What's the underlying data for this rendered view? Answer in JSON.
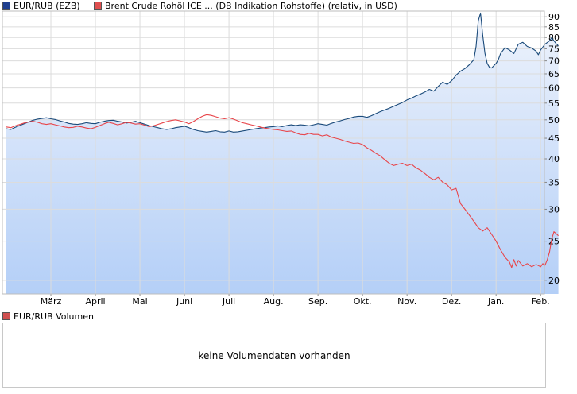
{
  "legend": {
    "series1_label": "EUR/RUB (EZB)",
    "series2_label": "Brent Crude Rohöl ICE ... (DB Indikation Rohstoffe) (relativ, in USD)",
    "volume_label": "EUR/RUB Volumen"
  },
  "volume_panel": {
    "message": "keine Volumendaten vorhanden"
  },
  "colors": {
    "series1": "#1a4a7a",
    "series2": "#e8454a",
    "swatch1": "#1f3f8f",
    "swatch2": "#e05050",
    "volume_swatch": "#d05050",
    "grid": "#dcdcdc",
    "area_top": "#eef3fc",
    "area_bottom": "#b4cff7"
  },
  "chart_data": {
    "type": "line",
    "y_scale": "log",
    "ylim": [
      18.5,
      93
    ],
    "y_ticks": [
      20,
      25,
      30,
      35,
      40,
      45,
      50,
      55,
      60,
      65,
      70,
      75,
      80,
      85,
      90
    ],
    "x_ticks": [
      {
        "label": "März",
        "month": 1
      },
      {
        "label": "April",
        "month": 2
      },
      {
        "label": "Mai",
        "month": 3
      },
      {
        "label": "Juni",
        "month": 4
      },
      {
        "label": "Juli",
        "month": 5
      },
      {
        "label": "Aug.",
        "month": 6
      },
      {
        "label": "Sep.",
        "month": 7
      },
      {
        "label": "Okt.",
        "month": 8
      },
      {
        "label": "Nov.",
        "month": 9
      },
      {
        "label": "Dez.",
        "month": 10
      },
      {
        "label": "Jan.",
        "month": 11
      },
      {
        "label": "Feb.",
        "month": 12
      }
    ],
    "x_range_months": [
      0,
      12.05
    ],
    "series": [
      {
        "name": "EUR/RUB (EZB)",
        "style": "area",
        "points": [
          [
            0,
            47.5
          ],
          [
            0.1,
            47.3
          ],
          [
            0.2,
            47.9
          ],
          [
            0.3,
            48.4
          ],
          [
            0.4,
            48.9
          ],
          [
            0.5,
            49.4
          ],
          [
            0.6,
            49.9
          ],
          [
            0.7,
            50.2
          ],
          [
            0.8,
            50.4
          ],
          [
            0.9,
            50.6
          ],
          [
            1.0,
            50.3
          ],
          [
            1.1,
            50.1
          ],
          [
            1.2,
            49.7
          ],
          [
            1.3,
            49.4
          ],
          [
            1.4,
            49.0
          ],
          [
            1.5,
            48.8
          ],
          [
            1.6,
            48.7
          ],
          [
            1.7,
            48.9
          ],
          [
            1.8,
            49.2
          ],
          [
            1.9,
            49.0
          ],
          [
            2.0,
            48.9
          ],
          [
            2.1,
            49.3
          ],
          [
            2.2,
            49.6
          ],
          [
            2.3,
            49.8
          ],
          [
            2.4,
            49.9
          ],
          [
            2.5,
            49.6
          ],
          [
            2.6,
            49.4
          ],
          [
            2.7,
            49.1
          ],
          [
            2.8,
            49.3
          ],
          [
            2.9,
            49.6
          ],
          [
            3.0,
            49.2
          ],
          [
            3.1,
            48.8
          ],
          [
            3.2,
            48.4
          ],
          [
            3.3,
            48.1
          ],
          [
            3.4,
            47.8
          ],
          [
            3.5,
            47.5
          ],
          [
            3.6,
            47.3
          ],
          [
            3.7,
            47.5
          ],
          [
            3.8,
            47.8
          ],
          [
            3.9,
            48.0
          ],
          [
            4.0,
            48.2
          ],
          [
            4.1,
            47.8
          ],
          [
            4.2,
            47.3
          ],
          [
            4.3,
            47.0
          ],
          [
            4.4,
            46.8
          ],
          [
            4.5,
            46.6
          ],
          [
            4.6,
            46.8
          ],
          [
            4.7,
            47.0
          ],
          [
            4.8,
            46.7
          ],
          [
            4.9,
            46.6
          ],
          [
            5.0,
            46.9
          ],
          [
            5.1,
            46.6
          ],
          [
            5.2,
            46.7
          ],
          [
            5.3,
            46.9
          ],
          [
            5.4,
            47.1
          ],
          [
            5.5,
            47.3
          ],
          [
            5.6,
            47.5
          ],
          [
            5.7,
            47.7
          ],
          [
            5.8,
            47.8
          ],
          [
            5.9,
            48.0
          ],
          [
            6.0,
            48.1
          ],
          [
            6.1,
            48.3
          ],
          [
            6.2,
            48.1
          ],
          [
            6.3,
            48.4
          ],
          [
            6.4,
            48.6
          ],
          [
            6.5,
            48.4
          ],
          [
            6.6,
            48.6
          ],
          [
            6.7,
            48.5
          ],
          [
            6.8,
            48.3
          ],
          [
            6.9,
            48.6
          ],
          [
            7.0,
            48.9
          ],
          [
            7.1,
            48.7
          ],
          [
            7.2,
            48.5
          ],
          [
            7.3,
            49.0
          ],
          [
            7.4,
            49.4
          ],
          [
            7.5,
            49.7
          ],
          [
            7.6,
            50.1
          ],
          [
            7.7,
            50.4
          ],
          [
            7.8,
            50.8
          ],
          [
            7.9,
            51.0
          ],
          [
            8.0,
            51.0
          ],
          [
            8.1,
            50.7
          ],
          [
            8.2,
            51.2
          ],
          [
            8.3,
            51.8
          ],
          [
            8.4,
            52.4
          ],
          [
            8.5,
            52.9
          ],
          [
            8.6,
            53.4
          ],
          [
            8.7,
            54.0
          ],
          [
            8.8,
            54.6
          ],
          [
            8.9,
            55.2
          ],
          [
            9.0,
            56.0
          ],
          [
            9.1,
            56.6
          ],
          [
            9.2,
            57.3
          ],
          [
            9.3,
            57.9
          ],
          [
            9.4,
            58.6
          ],
          [
            9.5,
            59.5
          ],
          [
            9.6,
            58.9
          ],
          [
            9.7,
            60.5
          ],
          [
            9.8,
            62.0
          ],
          [
            9.9,
            61.2
          ],
          [
            10.0,
            62.5
          ],
          [
            10.1,
            64.5
          ],
          [
            10.2,
            66.0
          ],
          [
            10.3,
            67.0
          ],
          [
            10.4,
            68.5
          ],
          [
            10.5,
            70.5
          ],
          [
            10.55,
            76.0
          ],
          [
            10.6,
            88.0
          ],
          [
            10.65,
            92.0
          ],
          [
            10.7,
            81.0
          ],
          [
            10.75,
            73.0
          ],
          [
            10.8,
            69.0
          ],
          [
            10.85,
            67.5
          ],
          [
            10.9,
            67.2
          ],
          [
            11.0,
            69.0
          ],
          [
            11.05,
            70.5
          ],
          [
            11.1,
            73.0
          ],
          [
            11.2,
            75.5
          ],
          [
            11.3,
            74.5
          ],
          [
            11.4,
            73.0
          ],
          [
            11.5,
            77.0
          ],
          [
            11.6,
            77.8
          ],
          [
            11.7,
            76.0
          ],
          [
            11.8,
            75.3
          ],
          [
            11.9,
            74.0
          ],
          [
            11.95,
            72.5
          ],
          [
            12.0,
            74.5
          ],
          [
            12.1,
            77.0
          ],
          [
            12.2,
            78.5
          ],
          [
            12.25,
            80.0
          ],
          [
            12.3,
            78.5
          ],
          [
            12.35,
            77.2
          ],
          [
            12.4,
            76.3
          ]
        ]
      },
      {
        "name": "Brent Crude Rohöl ICE ... (DB Indikation Rohstoffe) (relativ, in USD)",
        "style": "line",
        "points": [
          [
            0,
            48.0
          ],
          [
            0.1,
            47.8
          ],
          [
            0.2,
            48.3
          ],
          [
            0.3,
            48.7
          ],
          [
            0.4,
            49.1
          ],
          [
            0.5,
            49.4
          ],
          [
            0.6,
            49.6
          ],
          [
            0.7,
            49.3
          ],
          [
            0.8,
            48.9
          ],
          [
            0.9,
            48.7
          ],
          [
            1.0,
            48.9
          ],
          [
            1.1,
            48.6
          ],
          [
            1.2,
            48.3
          ],
          [
            1.3,
            48.0
          ],
          [
            1.4,
            47.8
          ],
          [
            1.5,
            47.9
          ],
          [
            1.6,
            48.2
          ],
          [
            1.7,
            48.0
          ],
          [
            1.8,
            47.7
          ],
          [
            1.9,
            47.5
          ],
          [
            2.0,
            47.9
          ],
          [
            2.1,
            48.4
          ],
          [
            2.2,
            48.9
          ],
          [
            2.3,
            49.3
          ],
          [
            2.4,
            49.0
          ],
          [
            2.5,
            48.6
          ],
          [
            2.6,
            48.9
          ],
          [
            2.7,
            49.3
          ],
          [
            2.8,
            49.1
          ],
          [
            2.9,
            48.8
          ],
          [
            3.0,
            48.9
          ],
          [
            3.1,
            48.5
          ],
          [
            3.2,
            48.1
          ],
          [
            3.3,
            48.3
          ],
          [
            3.4,
            48.7
          ],
          [
            3.5,
            49.1
          ],
          [
            3.6,
            49.5
          ],
          [
            3.7,
            49.8
          ],
          [
            3.8,
            50.0
          ],
          [
            3.9,
            49.7
          ],
          [
            4.0,
            49.4
          ],
          [
            4.1,
            48.9
          ],
          [
            4.2,
            49.5
          ],
          [
            4.3,
            50.3
          ],
          [
            4.4,
            51.0
          ],
          [
            4.5,
            51.5
          ],
          [
            4.6,
            51.3
          ],
          [
            4.7,
            50.9
          ],
          [
            4.8,
            50.5
          ],
          [
            4.9,
            50.3
          ],
          [
            5.0,
            50.6
          ],
          [
            5.1,
            50.2
          ],
          [
            5.2,
            49.7
          ],
          [
            5.3,
            49.2
          ],
          [
            5.4,
            48.9
          ],
          [
            5.5,
            48.6
          ],
          [
            5.6,
            48.3
          ],
          [
            5.7,
            48.0
          ],
          [
            5.8,
            47.7
          ],
          [
            5.9,
            47.5
          ],
          [
            6.0,
            47.3
          ],
          [
            6.1,
            47.2
          ],
          [
            6.2,
            47.0
          ],
          [
            6.3,
            46.8
          ],
          [
            6.4,
            46.9
          ],
          [
            6.5,
            46.4
          ],
          [
            6.6,
            46.0
          ],
          [
            6.7,
            45.9
          ],
          [
            6.8,
            46.3
          ],
          [
            6.9,
            46.0
          ],
          [
            7.0,
            46.0
          ],
          [
            7.1,
            45.6
          ],
          [
            7.2,
            45.9
          ],
          [
            7.3,
            45.3
          ],
          [
            7.4,
            45.0
          ],
          [
            7.5,
            44.7
          ],
          [
            7.6,
            44.3
          ],
          [
            7.7,
            44.0
          ],
          [
            7.8,
            43.7
          ],
          [
            7.9,
            43.8
          ],
          [
            8.0,
            43.4
          ],
          [
            8.1,
            42.6
          ],
          [
            8.2,
            42.0
          ],
          [
            8.3,
            41.3
          ],
          [
            8.4,
            40.7
          ],
          [
            8.5,
            39.8
          ],
          [
            8.6,
            39.0
          ],
          [
            8.7,
            38.5
          ],
          [
            8.8,
            38.8
          ],
          [
            8.9,
            39.0
          ],
          [
            9.0,
            38.5
          ],
          [
            9.1,
            38.8
          ],
          [
            9.2,
            38.0
          ],
          [
            9.3,
            37.5
          ],
          [
            9.4,
            36.8
          ],
          [
            9.5,
            36.0
          ],
          [
            9.6,
            35.5
          ],
          [
            9.7,
            36.0
          ],
          [
            9.8,
            35.0
          ],
          [
            9.9,
            34.5
          ],
          [
            10.0,
            33.5
          ],
          [
            10.1,
            33.8
          ],
          [
            10.2,
            31.0
          ],
          [
            10.3,
            30.0
          ],
          [
            10.4,
            29.0
          ],
          [
            10.5,
            28.0
          ],
          [
            10.6,
            27.0
          ],
          [
            10.7,
            26.5
          ],
          [
            10.8,
            27.0
          ],
          [
            10.9,
            26.0
          ],
          [
            11.0,
            25.0
          ],
          [
            11.1,
            23.8
          ],
          [
            11.2,
            22.8
          ],
          [
            11.3,
            22.2
          ],
          [
            11.35,
            21.5
          ],
          [
            11.4,
            22.5
          ],
          [
            11.45,
            21.7
          ],
          [
            11.5,
            22.4
          ],
          [
            11.6,
            21.7
          ],
          [
            11.7,
            22.0
          ],
          [
            11.8,
            21.6
          ],
          [
            11.9,
            21.9
          ],
          [
            12.0,
            21.6
          ],
          [
            12.05,
            22.0
          ],
          [
            12.1,
            21.8
          ],
          [
            12.15,
            22.5
          ],
          [
            12.2,
            23.5
          ],
          [
            12.25,
            25.3
          ],
          [
            12.3,
            26.4
          ],
          [
            12.35,
            26.1
          ],
          [
            12.4,
            25.8
          ]
        ]
      }
    ]
  }
}
